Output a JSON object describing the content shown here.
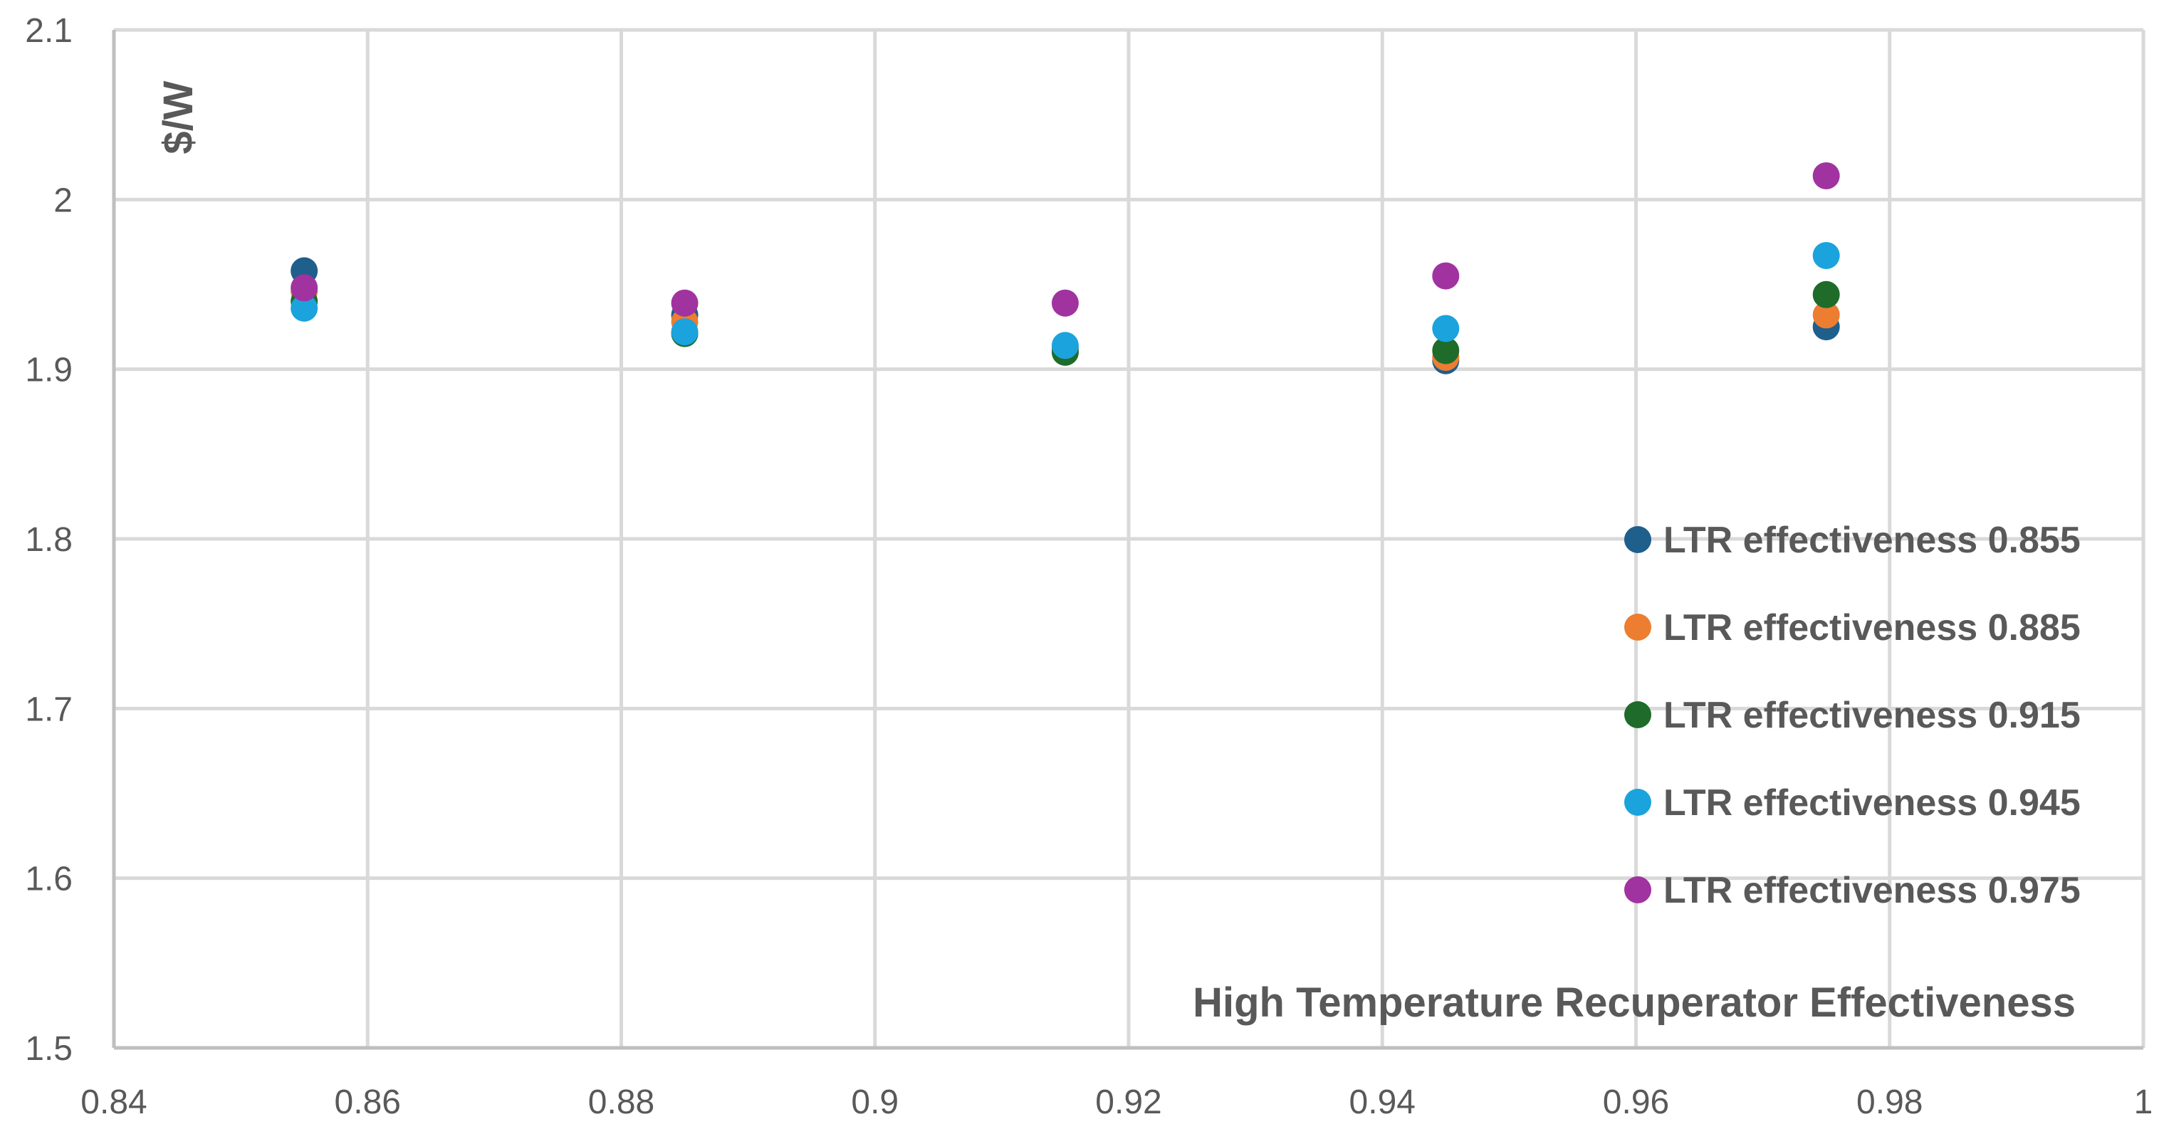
{
  "chart_data": {
    "type": "scatter",
    "title": "",
    "xlabel": "High Temperature Recuperator Effectiveness",
    "ylabel": "$/W",
    "xlim": [
      0.84,
      1.0
    ],
    "ylim": [
      1.5,
      2.1
    ],
    "x_ticks": [
      "0.84",
      "0.86",
      "0.88",
      "0.9",
      "0.92",
      "0.94",
      "0.96",
      "0.98",
      "1"
    ],
    "y_ticks": [
      "1.5",
      "1.6",
      "1.7",
      "1.8",
      "1.9",
      "2",
      "2.1"
    ],
    "x_tick_values": [
      0.84,
      0.86,
      0.88,
      0.9,
      0.92,
      0.94,
      0.96,
      0.98,
      1.0
    ],
    "y_tick_values": [
      1.5,
      1.6,
      1.7,
      1.8,
      1.9,
      2.0,
      2.1
    ],
    "grid": true,
    "legend_position": "right",
    "x": [
      0.855,
      0.885,
      0.915,
      0.945,
      0.975
    ],
    "series": [
      {
        "name": "LTR effectiveness 0.855",
        "color": "#1f5f8b",
        "values": [
          1.958,
          1.932,
          1.912,
          1.905,
          1.925
        ]
      },
      {
        "name": "LTR effectiveness 0.885",
        "color": "#ed7d31",
        "values": [
          1.946,
          1.928,
          1.911,
          1.907,
          1.932
        ]
      },
      {
        "name": "LTR effectiveness 0.915",
        "color": "#1e6b2a",
        "values": [
          1.94,
          1.921,
          1.91,
          1.911,
          1.944
        ]
      },
      {
        "name": "LTR effectiveness 0.945",
        "color": "#1aa3dc",
        "values": [
          1.936,
          1.922,
          1.914,
          1.924,
          1.967
        ]
      },
      {
        "name": "LTR effectiveness 0.975",
        "color": "#a0339f",
        "values": [
          1.948,
          1.939,
          1.939,
          1.955,
          2.014
        ]
      }
    ]
  }
}
